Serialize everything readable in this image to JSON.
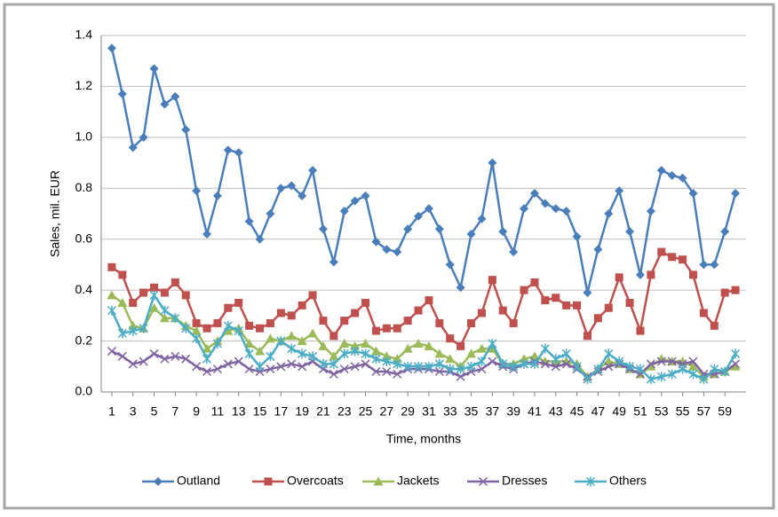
{
  "chart_data": {
    "type": "line",
    "xlabel": "Time, months",
    "ylabel": "Sales, mil. EUR",
    "x": [
      1,
      2,
      3,
      4,
      5,
      6,
      7,
      8,
      9,
      10,
      11,
      12,
      13,
      14,
      15,
      16,
      17,
      18,
      19,
      20,
      21,
      22,
      23,
      24,
      25,
      26,
      27,
      28,
      29,
      30,
      31,
      32,
      33,
      34,
      35,
      36,
      37,
      38,
      39,
      40,
      41,
      42,
      43,
      44,
      45,
      46,
      47,
      48,
      49,
      50,
      51,
      52,
      53,
      54,
      55,
      56,
      57,
      58,
      59,
      60
    ],
    "xlim": [
      0,
      61
    ],
    "xticks": [
      1,
      3,
      5,
      7,
      9,
      11,
      13,
      15,
      17,
      19,
      21,
      23,
      25,
      27,
      29,
      31,
      33,
      35,
      37,
      39,
      41,
      43,
      45,
      47,
      49,
      51,
      53,
      55,
      57,
      59
    ],
    "ylim": [
      0,
      1.4
    ],
    "yticks": [
      {
        "value": 0,
        "label": "0.0"
      },
      0.2,
      0.4,
      0.6,
      0.8,
      {
        "value": 1,
        "label": "1.0"
      },
      1.2,
      1.4
    ],
    "grid": true,
    "legend": "bottom",
    "series": [
      {
        "name": "Outland",
        "color": "#4a7ebb",
        "marker": "diamond",
        "values": [
          1.35,
          1.17,
          0.96,
          1.0,
          1.27,
          1.13,
          1.16,
          1.03,
          0.79,
          0.62,
          0.77,
          0.95,
          0.94,
          0.67,
          0.6,
          0.7,
          0.8,
          0.81,
          0.77,
          0.87,
          0.64,
          0.51,
          0.71,
          0.75,
          0.77,
          0.59,
          0.56,
          0.55,
          0.64,
          0.69,
          0.72,
          0.64,
          0.5,
          0.41,
          0.62,
          0.68,
          0.9,
          0.63,
          0.55,
          0.72,
          0.78,
          0.74,
          0.72,
          0.71,
          0.61,
          0.39,
          0.56,
          0.7,
          0.79,
          0.63,
          0.46,
          0.71,
          0.87,
          0.85,
          0.84,
          0.78,
          0.5,
          0.5,
          0.63,
          0.78
        ]
      },
      {
        "name": "Overcoats",
        "color": "#c0504d",
        "marker": "square",
        "values": [
          0.49,
          0.46,
          0.35,
          0.39,
          0.41,
          0.39,
          0.43,
          0.38,
          0.27,
          0.25,
          0.27,
          0.33,
          0.35,
          0.26,
          0.25,
          0.27,
          0.31,
          0.3,
          0.34,
          0.38,
          0.28,
          0.22,
          0.28,
          0.31,
          0.35,
          0.24,
          0.25,
          0.25,
          0.28,
          0.32,
          0.36,
          0.27,
          0.21,
          0.18,
          0.27,
          0.31,
          0.44,
          0.32,
          0.27,
          0.4,
          0.43,
          0.36,
          0.37,
          0.34,
          0.34,
          0.22,
          0.29,
          0.33,
          0.45,
          0.35,
          0.24,
          0.46,
          0.55,
          0.53,
          0.52,
          0.46,
          0.31,
          0.26,
          0.39,
          0.4
        ]
      },
      {
        "name": "Jackets",
        "color": "#9bbb59",
        "marker": "triangle",
        "values": [
          0.38,
          0.35,
          0.26,
          0.25,
          0.33,
          0.29,
          0.29,
          0.26,
          0.24,
          0.17,
          0.2,
          0.24,
          0.25,
          0.19,
          0.16,
          0.21,
          0.2,
          0.22,
          0.2,
          0.23,
          0.18,
          0.14,
          0.19,
          0.18,
          0.19,
          0.16,
          0.14,
          0.13,
          0.17,
          0.19,
          0.18,
          0.15,
          0.13,
          0.1,
          0.15,
          0.17,
          0.17,
          0.11,
          0.11,
          0.13,
          0.14,
          0.12,
          0.12,
          0.12,
          0.11,
          0.06,
          0.09,
          0.12,
          0.11,
          0.09,
          0.07,
          0.1,
          0.13,
          0.12,
          0.12,
          0.1,
          0.06,
          0.07,
          0.08,
          0.1
        ]
      },
      {
        "name": "Dresses",
        "color": "#8064a2",
        "marker": "x",
        "values": [
          0.16,
          0.14,
          0.11,
          0.12,
          0.15,
          0.13,
          0.14,
          0.13,
          0.1,
          0.08,
          0.09,
          0.11,
          0.12,
          0.09,
          0.08,
          0.09,
          0.1,
          0.11,
          0.1,
          0.12,
          0.09,
          0.07,
          0.09,
          0.1,
          0.11,
          0.08,
          0.08,
          0.07,
          0.09,
          0.09,
          0.09,
          0.08,
          0.08,
          0.06,
          0.08,
          0.09,
          0.12,
          0.1,
          0.09,
          0.11,
          0.12,
          0.11,
          0.1,
          0.11,
          0.09,
          0.06,
          0.08,
          0.1,
          0.11,
          0.09,
          0.07,
          0.11,
          0.12,
          0.12,
          0.11,
          0.12,
          0.07,
          0.07,
          0.08,
          0.11
        ]
      },
      {
        "name": "Others",
        "color": "#4bacc6",
        "marker": "asterisk",
        "values": [
          0.32,
          0.23,
          0.24,
          0.25,
          0.38,
          0.32,
          0.29,
          0.25,
          0.21,
          0.13,
          0.19,
          0.26,
          0.24,
          0.15,
          0.1,
          0.14,
          0.2,
          0.17,
          0.15,
          0.14,
          0.11,
          0.11,
          0.15,
          0.16,
          0.15,
          0.13,
          0.12,
          0.11,
          0.1,
          0.1,
          0.1,
          0.11,
          0.09,
          0.09,
          0.1,
          0.12,
          0.19,
          0.11,
          0.1,
          0.11,
          0.11,
          0.17,
          0.13,
          0.15,
          0.1,
          0.05,
          0.09,
          0.15,
          0.12,
          0.1,
          0.09,
          0.05,
          0.06,
          0.07,
          0.09,
          0.07,
          0.05,
          0.09,
          0.08,
          0.15
        ]
      }
    ]
  }
}
